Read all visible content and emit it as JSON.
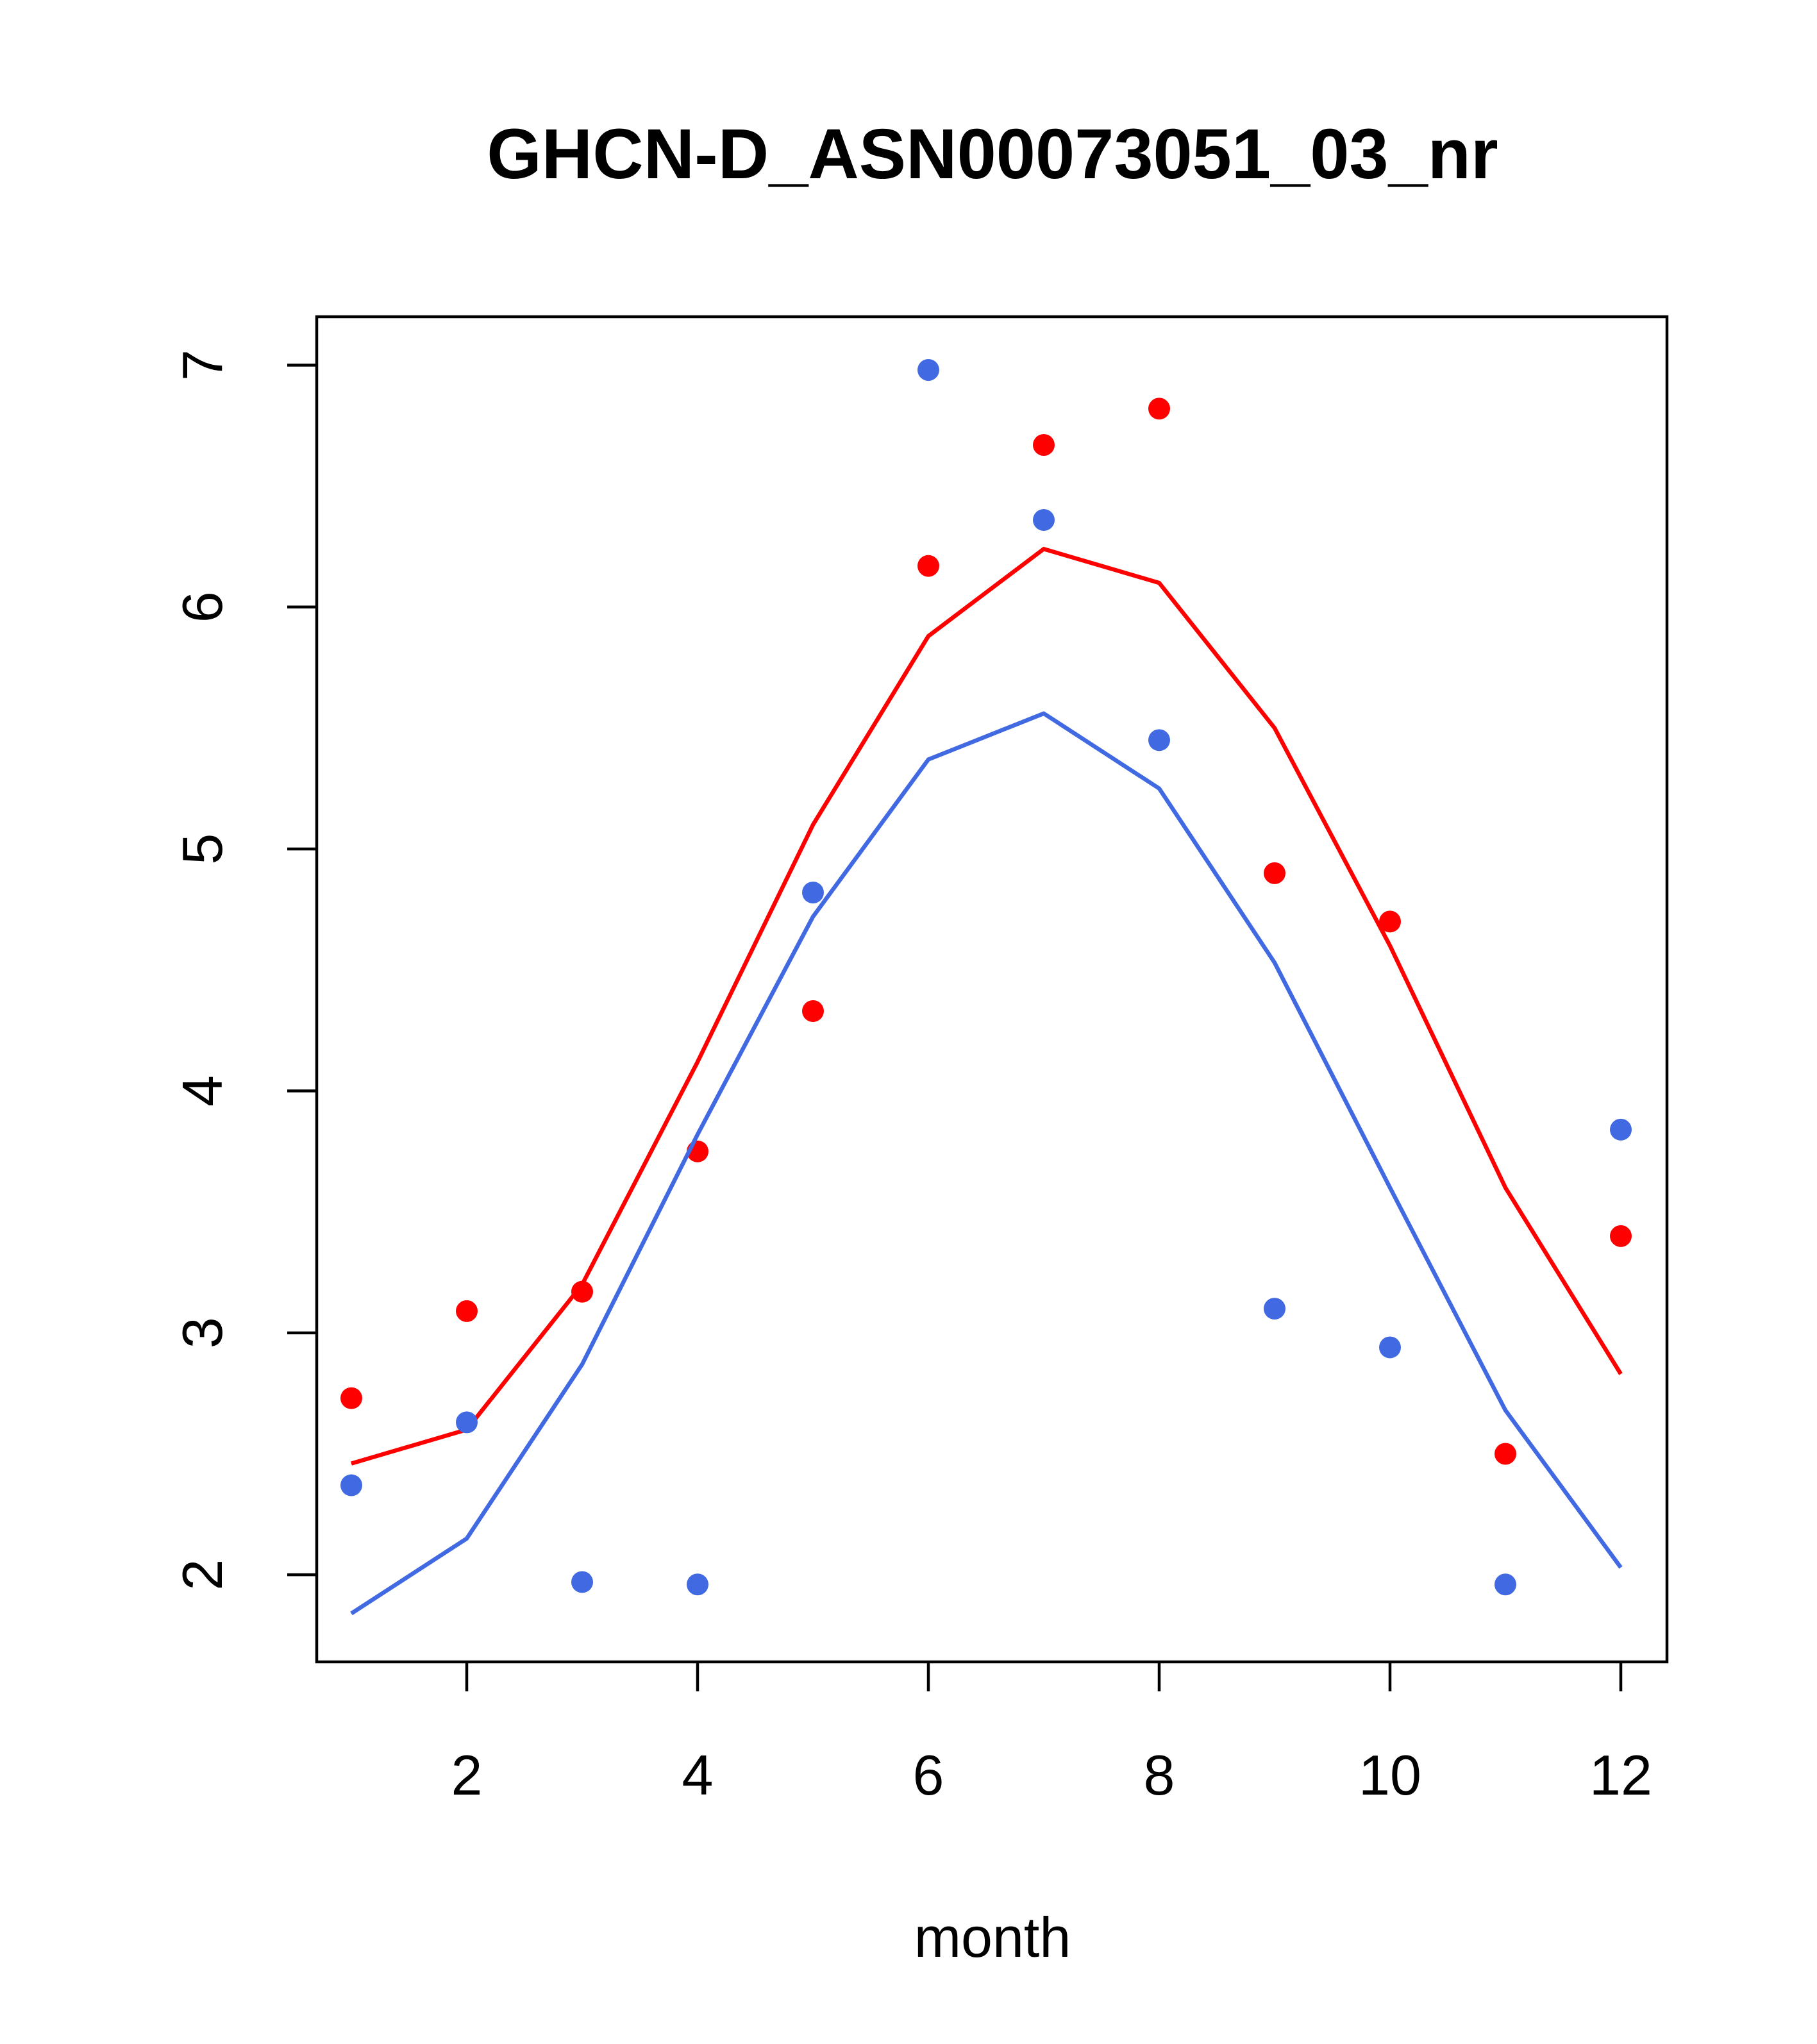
{
  "chart_data": {
    "type": "scatter",
    "title": "GHCN-D_ASN00073051_03_nr",
    "xlabel": "month",
    "ylabel": "",
    "xlim": [
      0.7,
      12.4
    ],
    "ylim": [
      1.64,
      7.2
    ],
    "xticks": [
      2,
      4,
      6,
      8,
      10,
      12
    ],
    "yticks": [
      2,
      3,
      4,
      5,
      6,
      7
    ],
    "grid": false,
    "legend": "none",
    "x": [
      1,
      2,
      3,
      4,
      5,
      6,
      7,
      8,
      9,
      10,
      11,
      12
    ],
    "series": [
      {
        "color": "#ff0000",
        "points": [
          2.73,
          3.09,
          3.17,
          3.75,
          4.33,
          6.17,
          6.67,
          6.82,
          4.9,
          4.7,
          2.5,
          3.4
        ],
        "line": [
          2.46,
          2.6,
          3.2,
          4.12,
          5.1,
          5.88,
          6.24,
          6.1,
          5.5,
          4.6,
          3.6,
          2.83
        ]
      },
      {
        "color": "#4169e1",
        "points": [
          2.37,
          2.63,
          1.97,
          1.96,
          4.82,
          6.98,
          6.36,
          5.45,
          3.1,
          2.94,
          1.96,
          3.84
        ],
        "line": [
          1.84,
          2.15,
          2.87,
          3.82,
          4.72,
          5.37,
          5.56,
          5.25,
          4.53,
          3.6,
          2.68,
          2.03
        ]
      }
    ]
  }
}
